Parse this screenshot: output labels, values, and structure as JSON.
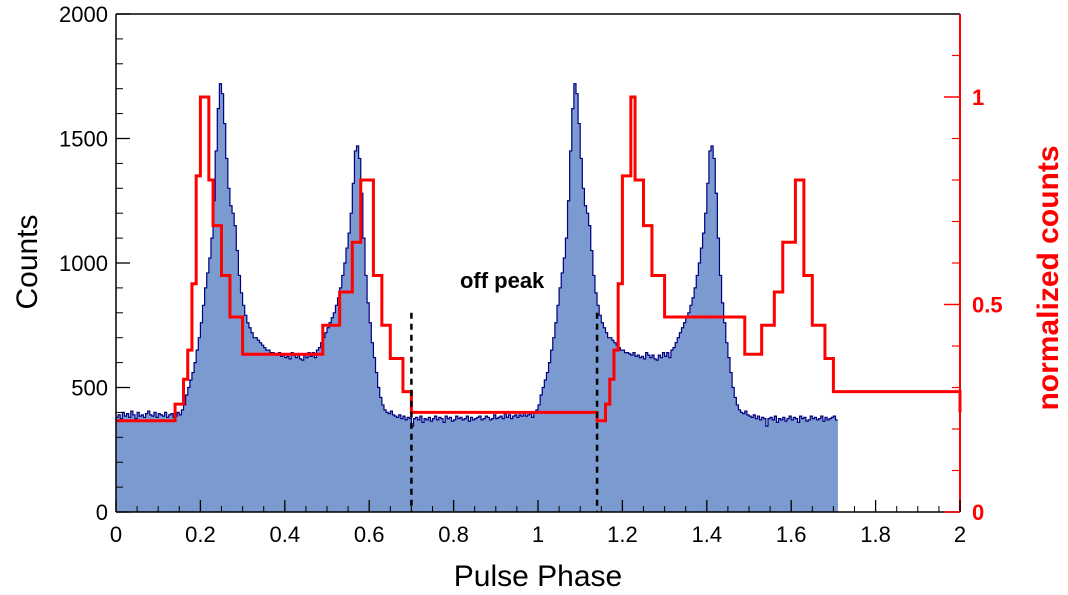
{
  "chart_data": {
    "type": "bar",
    "xlabel": "Pulse Phase",
    "ylabel": "Counts",
    "y2label": "normalized counts",
    "xlim": [
      0,
      2
    ],
    "ylim": [
      0,
      2000
    ],
    "y2lim": [
      0,
      1.2
    ],
    "x_ticks": [
      "0",
      "0.2",
      "0.4",
      "0.6",
      "0.8",
      "1",
      "1.2",
      "1.4",
      "1.6",
      "1.8",
      "2"
    ],
    "y_ticks": [
      "0",
      "500",
      "1000",
      "1500",
      "2000"
    ],
    "y2_ticks": [
      "0",
      "0.5",
      "1"
    ],
    "annotation": {
      "text": "off peak",
      "x": 0.915,
      "y": 900
    },
    "off_peak_lines": [
      0.7,
      1.14
    ],
    "off_peak_line_top": 800,
    "colors": {
      "histogram_fill": "#7b9ad0",
      "histogram_line": "#000080",
      "binned_line": "#ff0000",
      "axis": "#000000",
      "right_axis": "#ff0000"
    },
    "histogram": {
      "bin_width": 0.005,
      "counts": [
        380,
        390,
        375,
        400,
        385,
        395,
        380,
        405,
        390,
        375,
        400,
        385,
        390,
        380,
        395,
        405,
        390,
        385,
        400,
        380,
        395,
        390,
        385,
        400,
        380,
        390,
        395,
        380,
        385,
        400,
        390,
        410,
        430,
        470,
        500,
        530,
        560,
        600,
        650,
        700,
        760,
        830,
        900,
        960,
        1020,
        1100,
        1250,
        1450,
        1620,
        1720,
        1680,
        1560,
        1420,
        1300,
        1230,
        1200,
        1150,
        1050,
        950,
        880,
        830,
        790,
        760,
        740,
        720,
        700,
        700,
        690,
        680,
        670,
        660,
        650,
        650,
        640,
        640,
        635,
        630,
        640,
        625,
        630,
        620,
        625,
        615,
        640,
        630,
        620,
        630,
        615,
        610,
        630,
        620,
        640,
        625,
        640,
        620,
        650,
        660,
        680,
        700,
        720,
        740,
        760,
        780,
        800,
        830,
        860,
        900,
        950,
        1000,
        1060,
        1120,
        1200,
        1320,
        1450,
        1470,
        1420,
        1280,
        1100,
        950,
        840,
        760,
        680,
        620,
        560,
        500,
        460,
        430,
        410,
        400,
        395,
        405,
        390,
        385,
        380,
        390,
        375,
        385,
        370,
        380,
        375,
        345,
        375,
        380,
        370,
        385,
        360,
        375,
        370,
        380,
        365,
        375,
        385,
        370,
        380,
        375,
        360,
        385,
        375,
        380,
        365,
        370,
        385,
        375,
        380,
        370,
        375,
        385,
        365,
        380,
        370,
        375,
        380,
        385,
        370,
        375,
        385,
        380,
        370,
        375,
        390,
        375,
        380,
        385,
        375,
        395,
        380,
        390,
        375,
        385,
        390,
        380,
        390,
        385,
        400,
        385,
        390,
        395,
        380,
        400,
        410,
        430,
        470,
        500,
        530,
        560,
        600,
        650,
        700,
        760,
        830,
        900,
        960,
        1020,
        1100,
        1250,
        1450,
        1620,
        1720,
        1680,
        1560,
        1420,
        1300,
        1230,
        1200,
        1150,
        1050,
        950,
        880,
        830,
        790,
        760,
        740,
        720,
        700,
        700,
        690,
        680,
        670,
        660,
        650,
        650,
        640,
        640,
        635,
        630,
        640,
        625,
        630,
        620,
        625,
        615,
        640,
        630,
        620,
        630,
        615,
        610,
        630,
        620,
        640,
        625,
        640,
        620,
        650,
        660,
        680,
        700,
        720,
        740,
        760,
        780,
        800,
        830,
        860,
        900,
        950,
        1000,
        1060,
        1120,
        1200,
        1320,
        1450,
        1470,
        1420,
        1280,
        1100,
        950,
        840,
        760,
        680,
        620,
        560,
        500,
        460,
        430,
        410,
        400,
        395,
        405,
        390,
        385,
        380,
        390,
        375,
        385,
        370,
        380,
        375,
        345,
        375,
        380,
        370,
        385,
        360,
        375,
        370,
        380,
        365,
        375,
        385,
        370,
        380,
        375,
        360,
        385,
        375,
        380,
        365,
        370,
        385,
        375,
        380,
        370,
        375,
        385,
        365,
        380,
        370,
        375,
        380,
        385,
        370
      ]
    },
    "binned": {
      "edges": [
        0.0,
        0.14,
        0.16,
        0.17,
        0.18,
        0.19,
        0.2,
        0.22,
        0.23,
        0.25,
        0.27,
        0.3,
        0.49,
        0.53,
        0.56,
        0.58,
        0.61,
        0.63,
        0.65,
        0.68,
        0.7,
        1.14,
        1.16,
        1.17,
        1.18,
        1.19,
        1.2,
        1.22,
        1.23,
        1.25,
        1.27,
        1.3,
        1.49,
        1.53,
        1.56,
        1.58,
        1.61,
        1.63,
        1.65,
        1.68,
        1.7,
        2.0
      ],
      "values": [
        0.22,
        0.26,
        0.32,
        0.39,
        0.55,
        0.81,
        1.0,
        0.8,
        0.69,
        0.57,
        0.47,
        0.38,
        0.45,
        0.53,
        0.65,
        0.8,
        0.57,
        0.45,
        0.37,
        0.29,
        0.24,
        0.22,
        0.26,
        0.32,
        0.39,
        0.55,
        0.81,
        1.0,
        0.8,
        0.69,
        0.57,
        0.47,
        0.38,
        0.45,
        0.53,
        0.65,
        0.8,
        0.57,
        0.45,
        0.37,
        0.29,
        0.24
      ]
    }
  }
}
